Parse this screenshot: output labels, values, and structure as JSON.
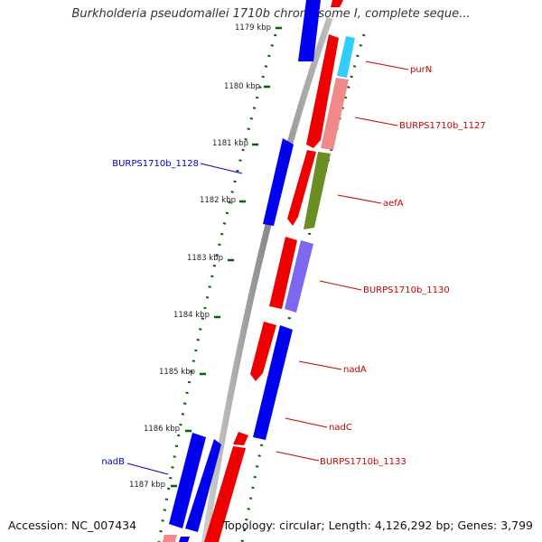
{
  "title": "Burkholderia pseudomallei 1710b chromosome I, complete seque...",
  "accession": "Accession: NC_007434",
  "topology": "Topology: circular; Length: 4,126,292 bp; Genes: 3,799",
  "ticks": [
    "1179 kbp",
    "1180 kbp",
    "1181 kbp",
    "1182 kbp",
    "1183 kbp",
    "1184 kbp",
    "1185 kbp",
    "1186 kbp",
    "1187 kbp"
  ],
  "gene_labels_fwd": [
    "purN",
    "BURPS1710b_1127",
    "aefA",
    "BURPS1710b_1130",
    "nadA",
    "nadC",
    "BURPS1710b_1133"
  ],
  "gene_labels_rev": [
    "BURPS1710b_1128",
    "nadB"
  ],
  "colors": {
    "forward_gene": "#ff0000",
    "reverse_gene": "#0000ff",
    "backbone": "#808080",
    "tick": "#006400",
    "purN": "#33ccff",
    "BURPS1710b_1127": "#f08a8a",
    "aefA": "#6b8e23",
    "BURPS1710b_1130": "#7b68ee",
    "label_fwd": "#cc0000",
    "label_rev": "#0000cc"
  }
}
